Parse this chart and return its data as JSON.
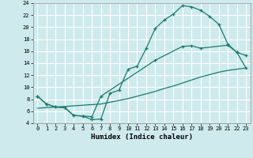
{
  "xlabel": "Humidex (Indice chaleur)",
  "bg_color": "#ceeaec",
  "line_color": "#1a7a6e",
  "grid_color": "#b8d8da",
  "xlim": [
    -0.5,
    23.5
  ],
  "ylim": [
    4,
    24
  ],
  "xticks": [
    0,
    1,
    2,
    3,
    4,
    5,
    6,
    7,
    8,
    9,
    10,
    11,
    12,
    13,
    14,
    15,
    16,
    17,
    18,
    19,
    20,
    21,
    22,
    23
  ],
  "yticks": [
    4,
    6,
    8,
    10,
    12,
    14,
    16,
    18,
    20,
    22,
    24
  ],
  "curve1_x": [
    0,
    1,
    2,
    3,
    4,
    5,
    6,
    7,
    8,
    9,
    10,
    11,
    12,
    13,
    14,
    15,
    16,
    17,
    18,
    19,
    20,
    21,
    22,
    23
  ],
  "curve1_y": [
    8.5,
    7.2,
    6.7,
    6.6,
    5.3,
    5.2,
    4.6,
    4.7,
    9.0,
    9.5,
    13.0,
    13.5,
    16.5,
    19.8,
    21.2,
    22.2,
    23.6,
    23.4,
    22.8,
    21.8,
    20.5,
    17.2,
    15.8,
    15.3
  ],
  "curve2_x": [
    0,
    1,
    2,
    3,
    4,
    5,
    6,
    7,
    13,
    16,
    17,
    18,
    21,
    22,
    23
  ],
  "curve2_y": [
    8.5,
    7.2,
    6.7,
    6.6,
    5.3,
    5.2,
    5.1,
    8.5,
    14.5,
    16.8,
    16.9,
    16.5,
    17.0,
    15.8,
    13.2
  ],
  "curve3_x": [
    0,
    1,
    2,
    3,
    4,
    5,
    6,
    7,
    8,
    9,
    10,
    11,
    12,
    13,
    14,
    15,
    16,
    17,
    18,
    19,
    20,
    21,
    22,
    23
  ],
  "curve3_y": [
    6.5,
    6.6,
    6.7,
    6.8,
    6.9,
    7.0,
    7.1,
    7.2,
    7.5,
    7.8,
    8.1,
    8.5,
    8.9,
    9.3,
    9.8,
    10.2,
    10.7,
    11.2,
    11.7,
    12.1,
    12.5,
    12.8,
    13.0,
    13.2
  ]
}
